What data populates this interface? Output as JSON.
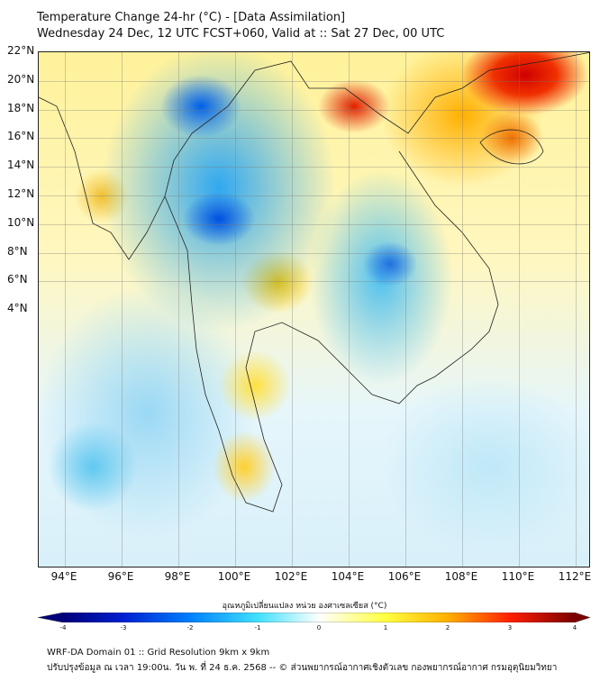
{
  "header": {
    "title": "Temperature Change 24-hr (°C) - [Data Assimilation]",
    "subtitle": "Wednesday 24 Dec, 12 UTC FCST+060, Valid at :: Sat 27 Dec, 00 UTC"
  },
  "map": {
    "lat_labels": [
      "22°N",
      "20°N",
      "18°N",
      "16°N",
      "14°N",
      "12°N",
      "10°N",
      "8°N",
      "6°N",
      "4°N"
    ],
    "lon_labels": [
      "94°E",
      "96°E",
      "98°E",
      "100°E",
      "102°E",
      "104°E",
      "106°E",
      "108°E",
      "110°E",
      "112°E"
    ]
  },
  "colorbar": {
    "title": "อุณหภูมิเปลี่ยนแปลง หน่วย องศาเซลเซียส (°C)",
    "ticks": [
      "-4",
      "-3",
      "-2",
      "-1",
      "0",
      "1",
      "2",
      "3",
      "4"
    ],
    "colors": [
      "#00007a",
      "#0020d0",
      "#0080ff",
      "#40e0ff",
      "#ffffff",
      "#ffff40",
      "#ffb000",
      "#ff2000",
      "#7a0000"
    ]
  },
  "footer": {
    "line1": "WRF-DA Domain 01 :: Grid Resolution 9km x 9km",
    "line2": "ปรับปรุงข้อมูล ณ เวลา 19:00น. วัน พ. ที่ 24 ธ.ค. 2568 -- © ส่วนพยากรณ์อากาศเชิงตัวเลข กองพยากรณ์อากาศ กรมอุตุนิยมวิทยา"
  }
}
